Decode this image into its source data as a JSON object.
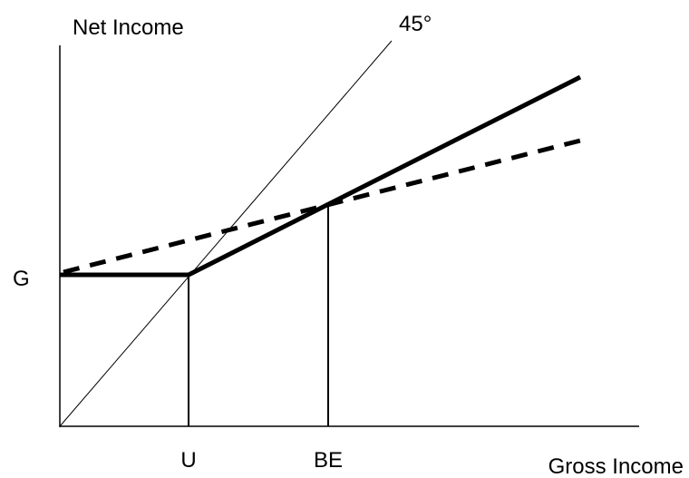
{
  "labels": {
    "y_axis": "Net Income",
    "x_axis": "Gross Income",
    "angle": "45°",
    "g": "G",
    "u": "U",
    "be": "BE"
  }
}
